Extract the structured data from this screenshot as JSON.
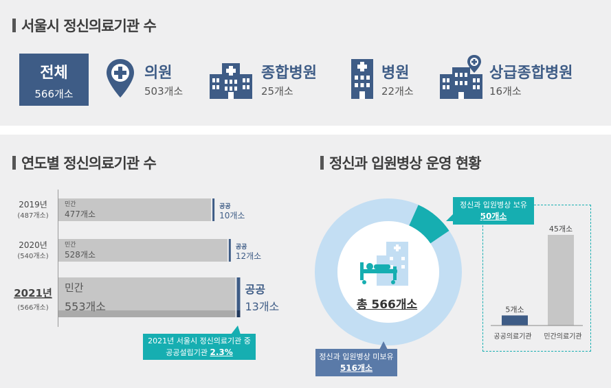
{
  "section1": {
    "title": "서울시 정신의료기관 수",
    "total": {
      "label": "전체",
      "count": "566개소"
    },
    "categories": [
      {
        "name": "의원",
        "count": "503개소"
      },
      {
        "name": "종합병원",
        "count": "25개소"
      },
      {
        "name": "병원",
        "count": "22개소"
      },
      {
        "name": "상급종합병원",
        "count": "16개소"
      }
    ]
  },
  "section2": {
    "title": "연도별 정신의료기관 수",
    "callout_line1": "2021년 서울시 정신의료기관 중",
    "callout_line2": "공공설립기관",
    "callout_value": "2.3%"
  },
  "section3": {
    "title": "정신과 입원병상 운영 현황",
    "center_label": "총 566개소",
    "callout_have_line1": "정신과 입원병상 보유",
    "callout_have_value": "50개소",
    "callout_none_line1": "정신과 입원병상 미보유",
    "callout_none_value": "516개소"
  },
  "colors": {
    "navy": "#3e5c86",
    "teal": "#16aeb1",
    "light_blue": "#c3def3",
    "gray": "#c6c6c6"
  },
  "chart_data": [
    {
      "type": "bar",
      "orientation": "horizontal",
      "stacked": true,
      "categories": [
        "2019년",
        "2020년",
        "2021년"
      ],
      "category_totals": [
        "(487개소)",
        "(540개소)",
        "(566개소)"
      ],
      "series": [
        {
          "name": "민간",
          "values": [
            477,
            528,
            553
          ],
          "labels": [
            "477개소",
            "528개소",
            "553개소"
          ]
        },
        {
          "name": "공공",
          "values": [
            10,
            12,
            13
          ],
          "labels": [
            "10개소",
            "12개소",
            "13개소"
          ]
        }
      ]
    },
    {
      "type": "pie",
      "style": "donut",
      "slices": [
        {
          "value": 50
        },
        {
          "value": 516
        }
      ]
    },
    {
      "type": "bar",
      "categories": [
        "공공의료기관",
        "민간의료기관"
      ],
      "values": [
        5,
        45
      ],
      "value_labels": [
        "5개소",
        "45개소"
      ]
    }
  ]
}
